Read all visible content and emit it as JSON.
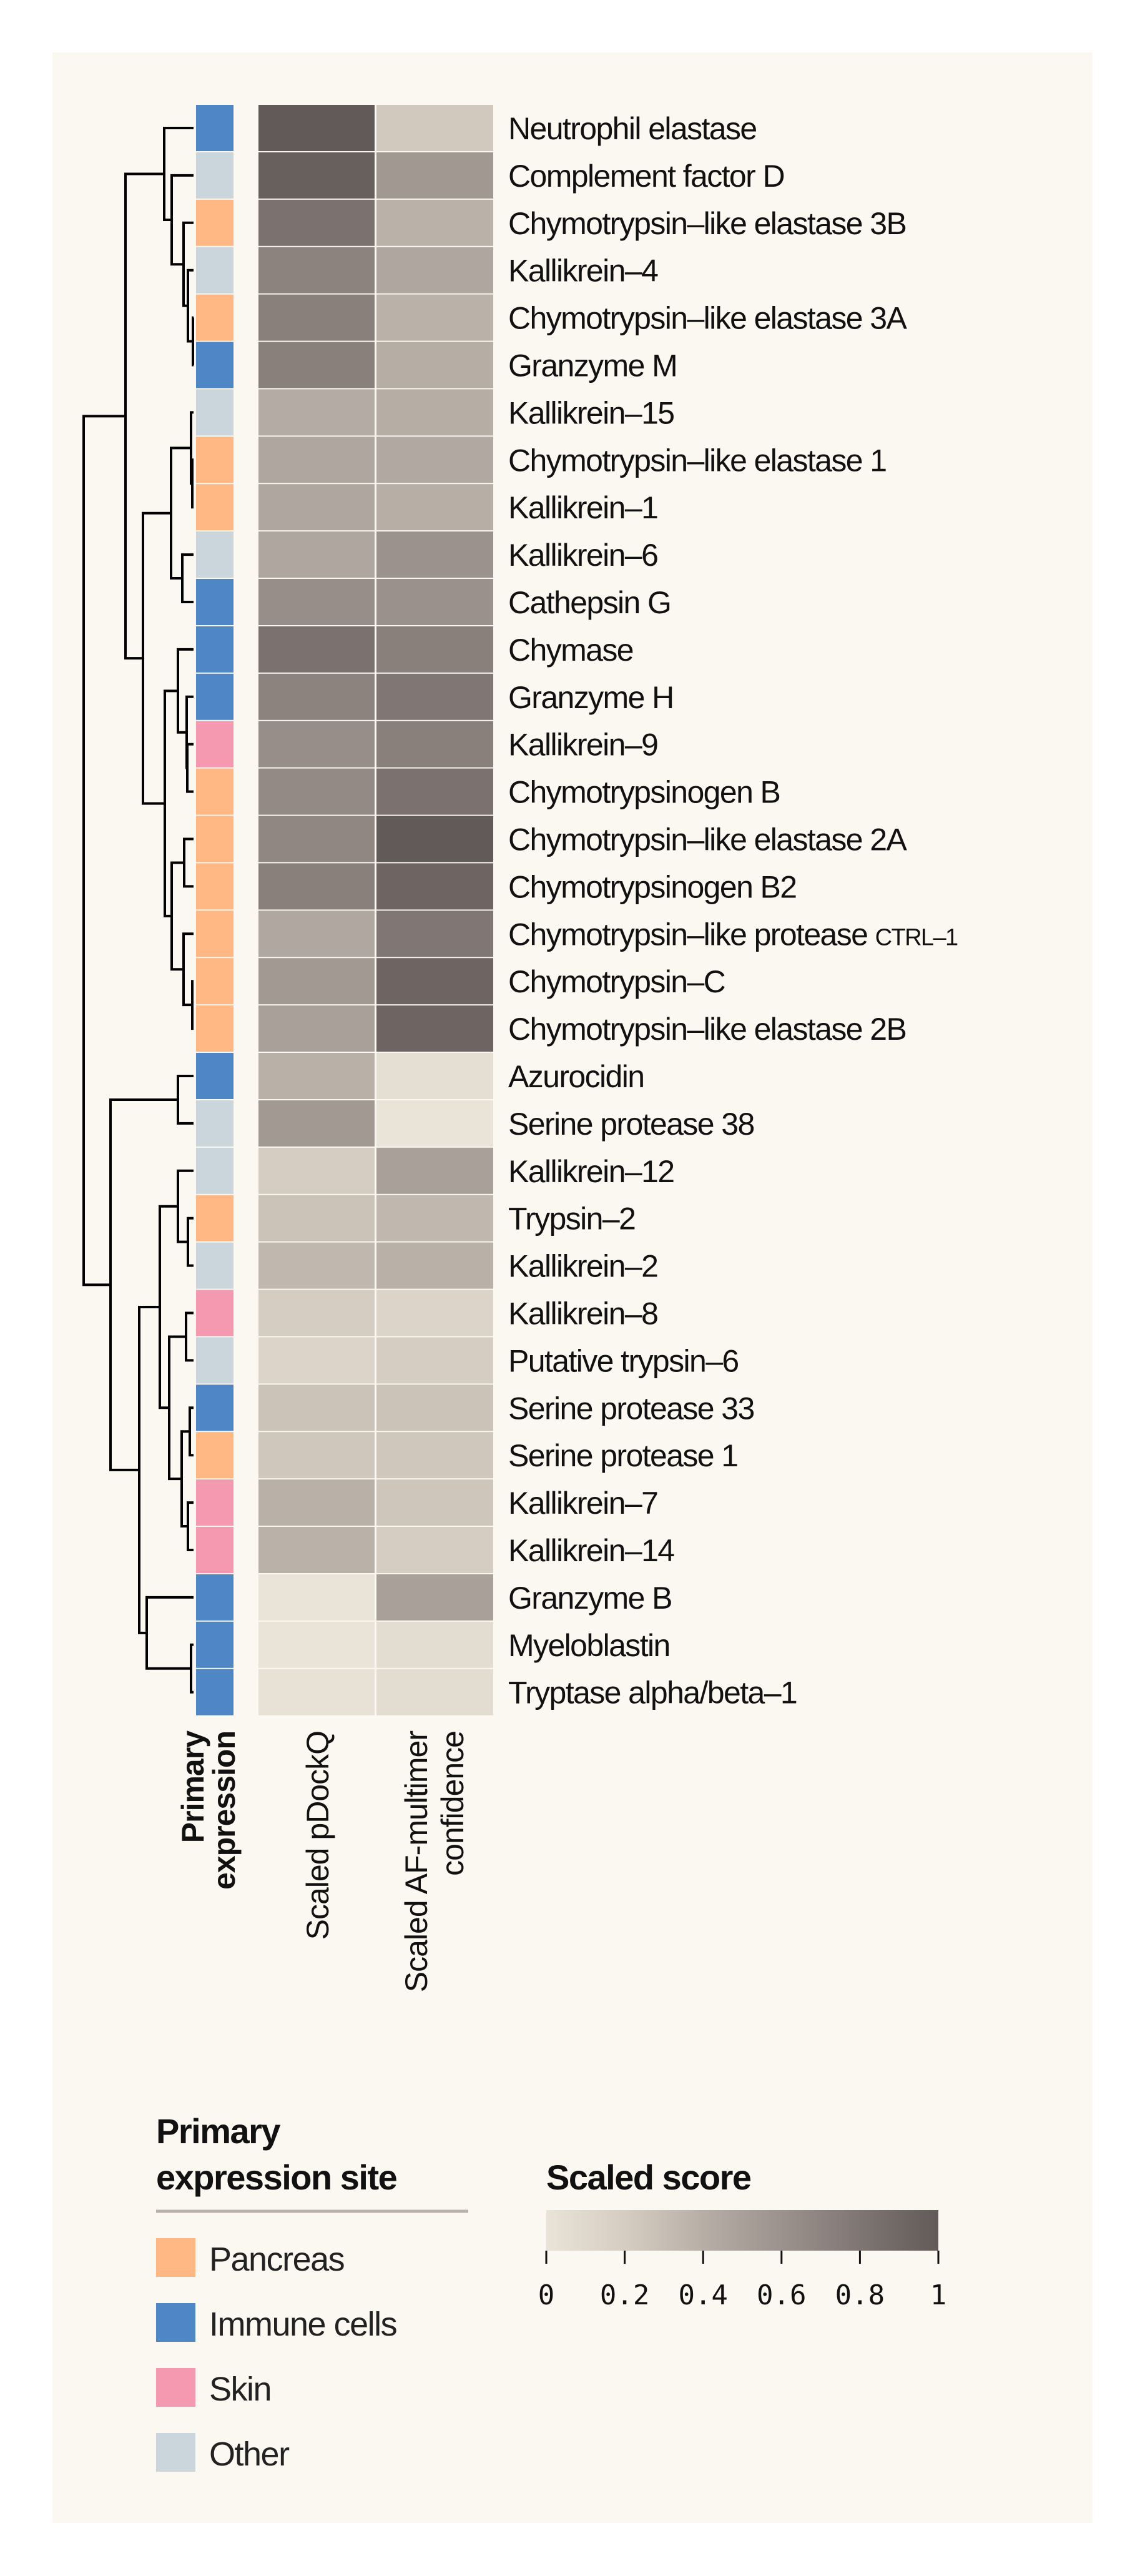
{
  "chart_data": {
    "type": "heatmap",
    "columns": [
      {
        "key": "expression",
        "label_lines": [
          "Primary",
          "expression"
        ]
      },
      {
        "key": "pdockq",
        "label_lines": [
          "Scaled pDockQ"
        ]
      },
      {
        "key": "af",
        "label_lines": [
          "Scaled AF-multimer",
          "confidence"
        ]
      }
    ],
    "rows": [
      {
        "name": "Neutrophil elastase",
        "site": "Immune cells",
        "pdockq": 1.0,
        "af": 0.23
      },
      {
        "name": "Complement factor D",
        "site": "Other",
        "pdockq": 0.96,
        "af": 0.56
      },
      {
        "name": "Chymotrypsin–like elastase 3B",
        "site": "Pancreas",
        "pdockq": 0.83,
        "af": 0.38
      },
      {
        "name": "Kallikrein–4",
        "site": "Other",
        "pdockq": 0.71,
        "af": 0.46
      },
      {
        "name": "Chymotrypsin–like elastase 3A",
        "site": "Pancreas",
        "pdockq": 0.73,
        "af": 0.38
      },
      {
        "name": "Granzyme M",
        "site": "Immune cells",
        "pdockq": 0.73,
        "af": 0.41
      },
      {
        "name": "Kallikrein–15",
        "site": "Other",
        "pdockq": 0.42,
        "af": 0.41
      },
      {
        "name": "Chymotrypsin–like elastase 1",
        "site": "Pancreas",
        "pdockq": 0.46,
        "af": 0.44
      },
      {
        "name": "Kallikrein–1",
        "site": "Pancreas",
        "pdockq": 0.46,
        "af": 0.4
      },
      {
        "name": "Kallikrein–6",
        "site": "Other",
        "pdockq": 0.46,
        "af": 0.6
      },
      {
        "name": "Cathepsin G",
        "site": "Immune cells",
        "pdockq": 0.63,
        "af": 0.61
      },
      {
        "name": "Chymase",
        "site": "Immune cells",
        "pdockq": 0.83,
        "af": 0.73
      },
      {
        "name": "Granzyme H",
        "site": "Immune cells",
        "pdockq": 0.71,
        "af": 0.79
      },
      {
        "name": "Kallikrein–9",
        "site": "Skin",
        "pdockq": 0.63,
        "af": 0.73
      },
      {
        "name": "Chymotrypsinogen B",
        "site": "Pancreas",
        "pdockq": 0.66,
        "af": 0.83
      },
      {
        "name": "Chymotrypsin–like elastase 2A",
        "site": "Pancreas",
        "pdockq": 0.68,
        "af": 1.0
      },
      {
        "name": "Chymotrypsinogen B2",
        "site": "Pancreas",
        "pdockq": 0.73,
        "af": 0.92
      },
      {
        "name": "Chymotrypsin–like protease ",
        "name_suffix": "CTRL–1",
        "site": "Pancreas",
        "pdockq": 0.45,
        "af": 0.79
      },
      {
        "name": "Chymotrypsin–C",
        "site": "Pancreas",
        "pdockq": 0.55,
        "af": 0.92
      },
      {
        "name": "Chymotrypsin–like elastase 2B",
        "site": "Pancreas",
        "pdockq": 0.5,
        "af": 0.92
      },
      {
        "name": "Azurocidin",
        "site": "Immune cells",
        "pdockq": 0.39,
        "af": 0.05
      },
      {
        "name": "Serine protease 38",
        "site": "Other",
        "pdockq": 0.55,
        "af": 0.0
      },
      {
        "name": "Kallikrein–12",
        "site": "Other",
        "pdockq": 0.2,
        "af": 0.5
      },
      {
        "name": "Trypsin–2",
        "site": "Pancreas",
        "pdockq": 0.27,
        "af": 0.34
      },
      {
        "name": "Kallikrein–2",
        "site": "Other",
        "pdockq": 0.34,
        "af": 0.39
      },
      {
        "name": "Kallikrein–8",
        "site": "Skin",
        "pdockq": 0.2,
        "af": 0.14
      },
      {
        "name": "Putative trypsin–6",
        "site": "Other",
        "pdockq": 0.14,
        "af": 0.2
      },
      {
        "name": "Serine protease 33",
        "site": "Immune cells",
        "pdockq": 0.27,
        "af": 0.27
      },
      {
        "name": "Serine protease 1",
        "site": "Pancreas",
        "pdockq": 0.24,
        "af": 0.24
      },
      {
        "name": "Kallikrein–7",
        "site": "Skin",
        "pdockq": 0.39,
        "af": 0.25
      },
      {
        "name": "Kallikrein–14",
        "site": "Skin",
        "pdockq": 0.38,
        "af": 0.2
      },
      {
        "name": "Granzyme B",
        "site": "Immune cells",
        "pdockq": 0.0,
        "af": 0.5
      },
      {
        "name": "Myeloblastin",
        "site": "Immune cells",
        "pdockq": 0.0,
        "af": 0.06
      },
      {
        "name": "Tryptase alpha/beta–1",
        "site": "Immune cells",
        "pdockq": 0.02,
        "af": 0.06
      }
    ],
    "dendrogram": "row clustering (unlabelled)",
    "site_colors": {
      "Pancreas": "#ffb884",
      "Immune cells": "#4f86c6",
      "Skin": "#f599b0",
      "Other": "#cad5dc"
    },
    "colorscale": {
      "min": 0,
      "max": 1,
      "low_color": "#e9e3d8",
      "high_color": "#625a58"
    }
  },
  "legend_site": {
    "title_lines": [
      "Primary",
      "expression site"
    ],
    "items": [
      {
        "label": "Pancreas",
        "color": "#ffb884"
      },
      {
        "label": "Immune cells",
        "color": "#4f86c6"
      },
      {
        "label": "Skin",
        "color": "#f599b0"
      },
      {
        "label": "Other",
        "color": "#cad5dc"
      }
    ]
  },
  "legend_score": {
    "title": "Scaled score",
    "ticks": [
      "0",
      "0.2",
      "0.4",
      "0.6",
      "0.8",
      "1"
    ]
  }
}
